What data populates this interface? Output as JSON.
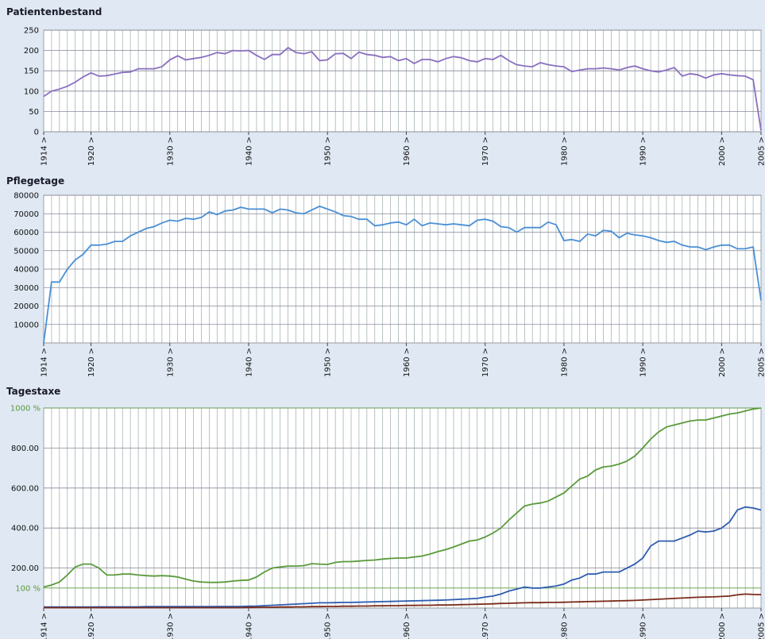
{
  "chart_data": [
    {
      "type": "line",
      "title": "Patientenbestand",
      "x": [
        1914,
        1915,
        1916,
        1917,
        1918,
        1919,
        1920,
        1921,
        1922,
        1923,
        1924,
        1925,
        1926,
        1927,
        1928,
        1929,
        1930,
        1931,
        1932,
        1933,
        1934,
        1935,
        1936,
        1937,
        1938,
        1939,
        1940,
        1941,
        1942,
        1943,
        1944,
        1945,
        1946,
        1947,
        1948,
        1949,
        1950,
        1951,
        1952,
        1953,
        1954,
        1955,
        1956,
        1957,
        1958,
        1959,
        1960,
        1961,
        1962,
        1963,
        1964,
        1965,
        1966,
        1967,
        1968,
        1969,
        1970,
        1971,
        1972,
        1973,
        1974,
        1975,
        1976,
        1977,
        1978,
        1979,
        1980,
        1981,
        1982,
        1983,
        1984,
        1985,
        1986,
        1987,
        1988,
        1989,
        1990,
        1991,
        1992,
        1993,
        1994,
        1995,
        1996,
        1997,
        1998,
        1999,
        2000,
        2001,
        2002,
        2003,
        2004,
        2005
      ],
      "series": [
        {
          "color": "#8a6fc0",
          "values": [
            87,
            100,
            105,
            112,
            122,
            135,
            145,
            137,
            138,
            142,
            146,
            147,
            155,
            155,
            155,
            160,
            177,
            187,
            177,
            180,
            183,
            188,
            195,
            192,
            200,
            199,
            200,
            188,
            178,
            190,
            190,
            207,
            195,
            192,
            197,
            175,
            177,
            192,
            193,
            180,
            196,
            190,
            188,
            183,
            185,
            175,
            180,
            168,
            178,
            178,
            172,
            180,
            185,
            182,
            175,
            172,
            180,
            178,
            188,
            175,
            165,
            162,
            160,
            170,
            165,
            162,
            160,
            148,
            152,
            155,
            155,
            157,
            155,
            152,
            158,
            162,
            155,
            150,
            147,
            152,
            158,
            137,
            143,
            140,
            132,
            140,
            143,
            140,
            138,
            137,
            128,
            3
          ]
        }
      ],
      "xlim": [
        1914,
        2005
      ],
      "xticks": [
        {
          "value": 1914,
          "label": "1914 >"
        },
        {
          "value": 1920,
          "label": "1920 >"
        },
        {
          "value": 1930,
          "label": "1930 >"
        },
        {
          "value": 1940,
          "label": "1940 >"
        },
        {
          "value": 1950,
          "label": "1950 >"
        },
        {
          "value": 1960,
          "label": "1960 >"
        },
        {
          "value": 1970,
          "label": "1970 >"
        },
        {
          "value": 1980,
          "label": "1980 >"
        },
        {
          "value": 1990,
          "label": "1990 >"
        },
        {
          "value": 2000,
          "label": "2000 >"
        },
        {
          "value": 2005,
          "label": "2005 >"
        }
      ],
      "ylim": [
        0,
        250
      ],
      "yticks": [
        0,
        50,
        100,
        150,
        200,
        250
      ],
      "grid": true
    },
    {
      "type": "line",
      "title": "Pflegetage",
      "x": [
        1914,
        1915,
        1916,
        1917,
        1918,
        1919,
        1920,
        1921,
        1922,
        1923,
        1924,
        1925,
        1926,
        1927,
        1928,
        1929,
        1930,
        1931,
        1932,
        1933,
        1934,
        1935,
        1936,
        1937,
        1938,
        1939,
        1940,
        1941,
        1942,
        1943,
        1944,
        1945,
        1946,
        1947,
        1948,
        1949,
        1950,
        1951,
        1952,
        1953,
        1954,
        1955,
        1956,
        1957,
        1958,
        1959,
        1960,
        1961,
        1962,
        1963,
        1964,
        1965,
        1966,
        1967,
        1968,
        1969,
        1970,
        1971,
        1972,
        1973,
        1974,
        1975,
        1976,
        1977,
        1978,
        1979,
        1980,
        1981,
        1982,
        1983,
        1984,
        1985,
        1986,
        1987,
        1988,
        1989,
        1990,
        1991,
        1992,
        1993,
        1994,
        1995,
        1996,
        1997,
        1998,
        1999,
        2000,
        2001,
        2002,
        2003,
        2004,
        2005
      ],
      "series": [
        {
          "color": "#4a8fd6",
          "values": [
            0,
            33000,
            33000,
            40000,
            45000,
            48000,
            53000,
            53000,
            53500,
            55000,
            55000,
            58000,
            60000,
            62000,
            63000,
            65000,
            66500,
            66000,
            67500,
            67000,
            68000,
            71000,
            69500,
            71500,
            72000,
            73500,
            72500,
            72500,
            72500,
            70500,
            72500,
            72000,
            70500,
            70000,
            72000,
            74000,
            72500,
            71000,
            69000,
            68500,
            67000,
            67000,
            63500,
            64000,
            65000,
            65500,
            64000,
            67000,
            63500,
            65000,
            64500,
            64000,
            64500,
            64000,
            63500,
            66500,
            67000,
            66000,
            63000,
            62500,
            60000,
            62500,
            62500,
            62500,
            65500,
            64000,
            55500,
            56000,
            55000,
            59000,
            58000,
            61000,
            60500,
            57000,
            59500,
            58500,
            58000,
            57000,
            55500,
            54500,
            55000,
            53000,
            52000,
            52000,
            50500,
            52000,
            53000,
            53000,
            51000,
            51000,
            52000,
            23000
          ]
        }
      ],
      "xlim": [
        1914,
        2005
      ],
      "xticks": [
        {
          "value": 1914,
          "label": "1914 >"
        },
        {
          "value": 1920,
          "label": "1920 >"
        },
        {
          "value": 1930,
          "label": "1930 >"
        },
        {
          "value": 1940,
          "label": "1940 >"
        },
        {
          "value": 1950,
          "label": "1950 >"
        },
        {
          "value": 1960,
          "label": "1960 >"
        },
        {
          "value": 1970,
          "label": "1970 >"
        },
        {
          "value": 1980,
          "label": "1980 >"
        },
        {
          "value": 1990,
          "label": "1990 >"
        },
        {
          "value": 2000,
          "label": "2000 >"
        },
        {
          "value": 2005,
          "label": "2005 >"
        }
      ],
      "ylim": [
        0,
        80000
      ],
      "yticks": [
        10000,
        20000,
        30000,
        40000,
        50000,
        60000,
        70000,
        80000
      ],
      "grid": true
    },
    {
      "type": "line",
      "title": "Tagestaxe",
      "x": [
        1914,
        1915,
        1916,
        1917,
        1918,
        1919,
        1920,
        1921,
        1922,
        1923,
        1924,
        1925,
        1926,
        1927,
        1928,
        1929,
        1930,
        1931,
        1932,
        1933,
        1934,
        1935,
        1936,
        1937,
        1938,
        1939,
        1940,
        1941,
        1942,
        1943,
        1944,
        1945,
        1946,
        1947,
        1948,
        1949,
        1950,
        1951,
        1952,
        1953,
        1954,
        1955,
        1956,
        1957,
        1958,
        1959,
        1960,
        1961,
        1962,
        1963,
        1964,
        1965,
        1966,
        1967,
        1968,
        1969,
        1970,
        1971,
        1972,
        1973,
        1974,
        1975,
        1976,
        1977,
        1978,
        1979,
        1980,
        1981,
        1982,
        1983,
        1984,
        1985,
        1986,
        1987,
        1988,
        1989,
        1990,
        1991,
        1992,
        1993,
        1994,
        1995,
        1996,
        1997,
        1998,
        1999,
        2000,
        2001,
        2002,
        2003,
        2004,
        2005
      ],
      "series": [
        {
          "color": "#5a9a3a",
          "values": [
            105,
            115,
            130,
            165,
            205,
            220,
            220,
            200,
            165,
            165,
            170,
            170,
            165,
            162,
            160,
            162,
            160,
            155,
            145,
            135,
            130,
            128,
            128,
            130,
            135,
            138,
            140,
            155,
            180,
            200,
            205,
            210,
            210,
            212,
            222,
            220,
            218,
            228,
            232,
            232,
            235,
            238,
            240,
            245,
            248,
            250,
            250,
            255,
            260,
            270,
            282,
            292,
            305,
            320,
            335,
            340,
            355,
            375,
            400,
            440,
            475,
            510,
            520,
            525,
            535,
            555,
            575,
            610,
            645,
            660,
            690,
            705,
            710,
            720,
            735,
            760,
            800,
            845,
            880,
            905,
            915,
            925,
            935,
            940,
            940,
            950,
            960,
            970,
            975,
            985,
            995,
            1000
          ]
        },
        {
          "color": "#2e5cb0",
          "values": [
            5,
            5,
            5,
            5,
            5,
            5,
            5,
            6,
            6,
            6,
            6,
            6,
            6,
            7,
            7,
            7,
            7,
            7,
            7,
            7,
            7,
            7,
            8,
            8,
            8,
            8,
            9,
            10,
            12,
            14,
            16,
            18,
            20,
            22,
            24,
            26,
            26,
            27,
            28,
            28,
            29,
            30,
            31,
            32,
            33,
            34,
            35,
            36,
            37,
            38,
            39,
            40,
            42,
            44,
            46,
            48,
            55,
            60,
            70,
            85,
            95,
            105,
            100,
            100,
            105,
            110,
            120,
            140,
            150,
            170,
            170,
            180,
            180,
            180,
            200,
            220,
            250,
            310,
            335,
            335,
            335,
            350,
            365,
            385,
            380,
            385,
            400,
            430,
            490,
            505,
            500,
            490
          ]
        },
        {
          "color": "#7a2a1a",
          "values": [
            2,
            2,
            2,
            2,
            2,
            2,
            2,
            2,
            2,
            2,
            2,
            2,
            2,
            2,
            2,
            2,
            2,
            2,
            2,
            2,
            2,
            2,
            2,
            2,
            2,
            2,
            3,
            3,
            4,
            4,
            5,
            5,
            6,
            6,
            7,
            7,
            8,
            8,
            9,
            9,
            10,
            10,
            11,
            11,
            12,
            12,
            13,
            13,
            14,
            14,
            15,
            15,
            16,
            17,
            18,
            19,
            20,
            21,
            23,
            24,
            25,
            26,
            27,
            27,
            28,
            28,
            29,
            30,
            31,
            32,
            33,
            34,
            35,
            36,
            37,
            38,
            40,
            42,
            44,
            46,
            48,
            50,
            52,
            54,
            55,
            56,
            58,
            60,
            66,
            70,
            68,
            67
          ]
        }
      ],
      "xlim": [
        1914,
        2005
      ],
      "xticks": [
        {
          "value": 1914,
          "label": "1914 >"
        },
        {
          "value": 1920,
          "label": "1920 >"
        },
        {
          "value": 1930,
          "label": "1930 >"
        },
        {
          "value": 1940,
          "label": "1940 >"
        },
        {
          "value": 1950,
          "label": "1950 >"
        },
        {
          "value": 1960,
          "label": "1960 >"
        },
        {
          "value": 1970,
          "label": "1970 >"
        },
        {
          "value": 1980,
          "label": "1980 >"
        },
        {
          "value": 1990,
          "label": "1990 >"
        },
        {
          "value": 2000,
          "label": "2000 >"
        },
        {
          "value": 2005,
          "label": "2005 >"
        }
      ],
      "ylim": [
        0,
        1000
      ],
      "yticks": [
        {
          "value": 200,
          "label": "200.00"
        },
        {
          "value": 400,
          "label": "400.00"
        },
        {
          "value": 600,
          "label": "600.00"
        },
        {
          "value": 800,
          "label": "800.00"
        }
      ],
      "annotations": [
        {
          "value": 100,
          "label": "100 %",
          "color": "#5a9a3a"
        },
        {
          "value": 1000,
          "label": "1000 %",
          "color": "#5a9a3a"
        }
      ],
      "grid": true
    }
  ]
}
